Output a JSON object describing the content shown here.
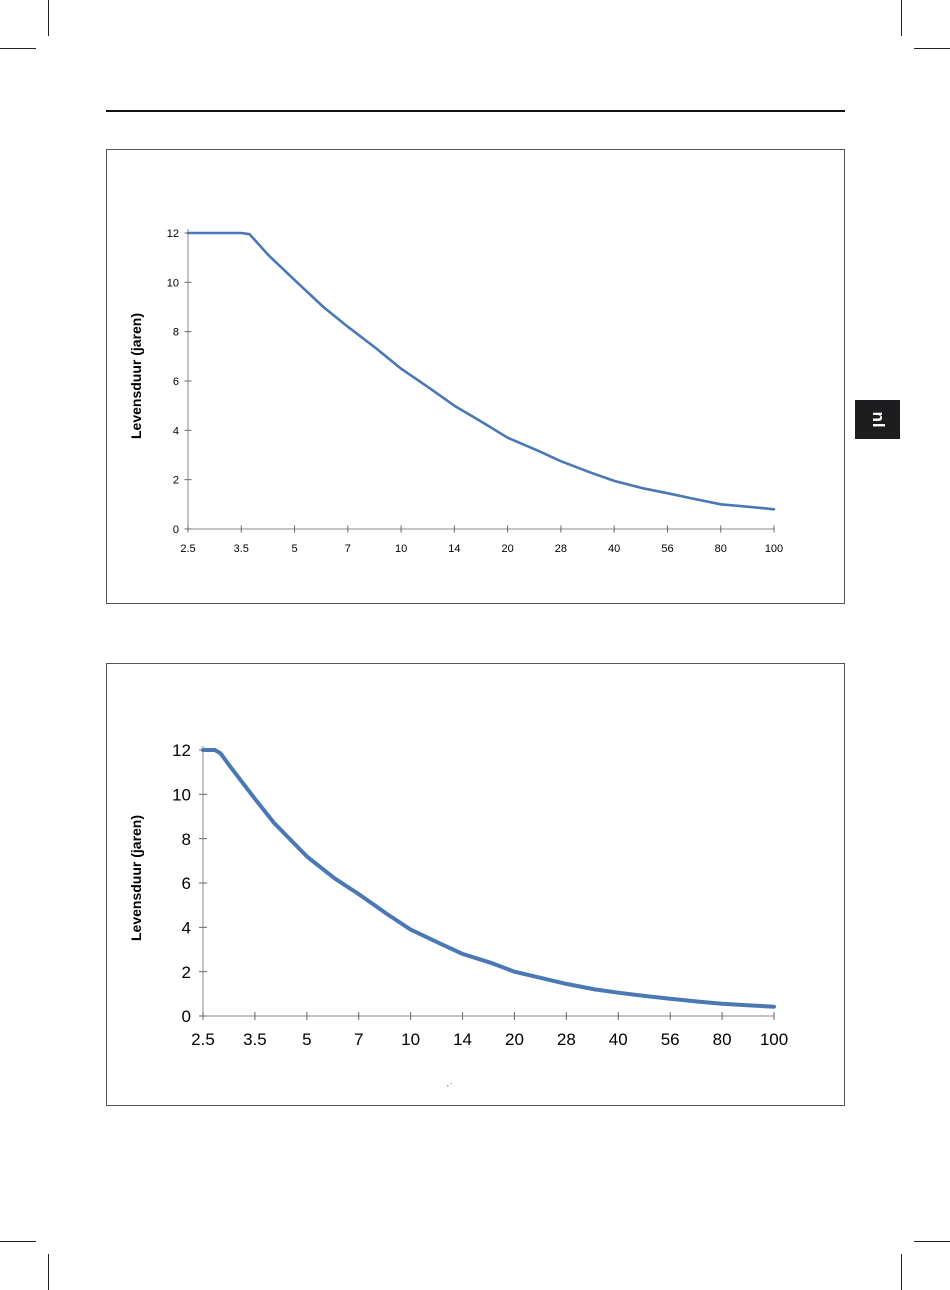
{
  "page": {
    "side_tab_label": "nl",
    "stray_mark": "·ˑ"
  },
  "chart_data": [
    {
      "type": "line",
      "title": "",
      "xlabel": "",
      "ylabel": "Levensduur (jaren)",
      "x_scale": "log",
      "x_ticks": [
        2.5,
        3.5,
        5,
        7,
        10,
        14,
        20,
        28,
        40,
        56,
        80,
        100
      ],
      "x_tick_labels": [
        "2.5",
        "3.5",
        "5",
        "7",
        "10",
        "14",
        "20",
        "28",
        "40",
        "56",
        "80",
        "100"
      ],
      "xlim": [
        2.5,
        100
      ],
      "ylim": [
        0,
        12
      ],
      "y_ticks": [
        0,
        2,
        4,
        6,
        8,
        10,
        12
      ],
      "y_tick_labels": [
        "0",
        "2",
        "4",
        "6",
        "8",
        "10",
        "12"
      ],
      "grid": false,
      "legend": "none",
      "series": [
        {
          "color": "#4a78b5",
          "x": [
            2.5,
            3.0,
            3.5,
            3.7,
            4.2,
            5,
            6,
            7,
            8.5,
            10,
            12,
            14,
            17,
            20,
            24,
            28,
            34,
            40,
            48,
            56,
            68,
            80,
            90,
            100
          ],
          "y": [
            12,
            12,
            12,
            11.95,
            11.1,
            10.1,
            9.0,
            8.2,
            7.3,
            6.5,
            5.7,
            5.0,
            4.3,
            3.7,
            3.2,
            2.75,
            2.3,
            1.95,
            1.65,
            1.45,
            1.2,
            1.0,
            0.9,
            0.8
          ]
        }
      ]
    },
    {
      "type": "line",
      "title": "",
      "xlabel": "",
      "ylabel": "Levensduur (jaren)",
      "x_scale": "log",
      "x_ticks": [
        2.5,
        3.5,
        5,
        7,
        10,
        14,
        20,
        28,
        40,
        56,
        80,
        100
      ],
      "x_tick_labels": [
        "2.5",
        "3.5",
        "5",
        "7",
        "10",
        "14",
        "20",
        "28",
        "40",
        "56",
        "80",
        "100"
      ],
      "xlim": [
        2.5,
        100
      ],
      "ylim": [
        0,
        12
      ],
      "y_ticks": [
        0,
        2,
        4,
        6,
        8,
        10,
        12
      ],
      "y_tick_labels": [
        "0",
        "2",
        "4",
        "6",
        "8",
        "10",
        "12"
      ],
      "grid": false,
      "legend": "none",
      "series": [
        {
          "color": "#4a78b5",
          "x": [
            2.5,
            2.6,
            2.7,
            2.8,
            3.0,
            3.5,
            4,
            5,
            6,
            7,
            8.5,
            10,
            12,
            14,
            17,
            20,
            24,
            28,
            34,
            40,
            48,
            56,
            68,
            80,
            90,
            100
          ],
          "y": [
            12,
            12,
            12,
            11.85,
            11.2,
            9.8,
            8.7,
            7.2,
            6.2,
            5.5,
            4.6,
            3.9,
            3.3,
            2.8,
            2.4,
            2.0,
            1.7,
            1.45,
            1.2,
            1.05,
            0.9,
            0.78,
            0.65,
            0.55,
            0.48,
            0.42
          ]
        }
      ]
    }
  ]
}
